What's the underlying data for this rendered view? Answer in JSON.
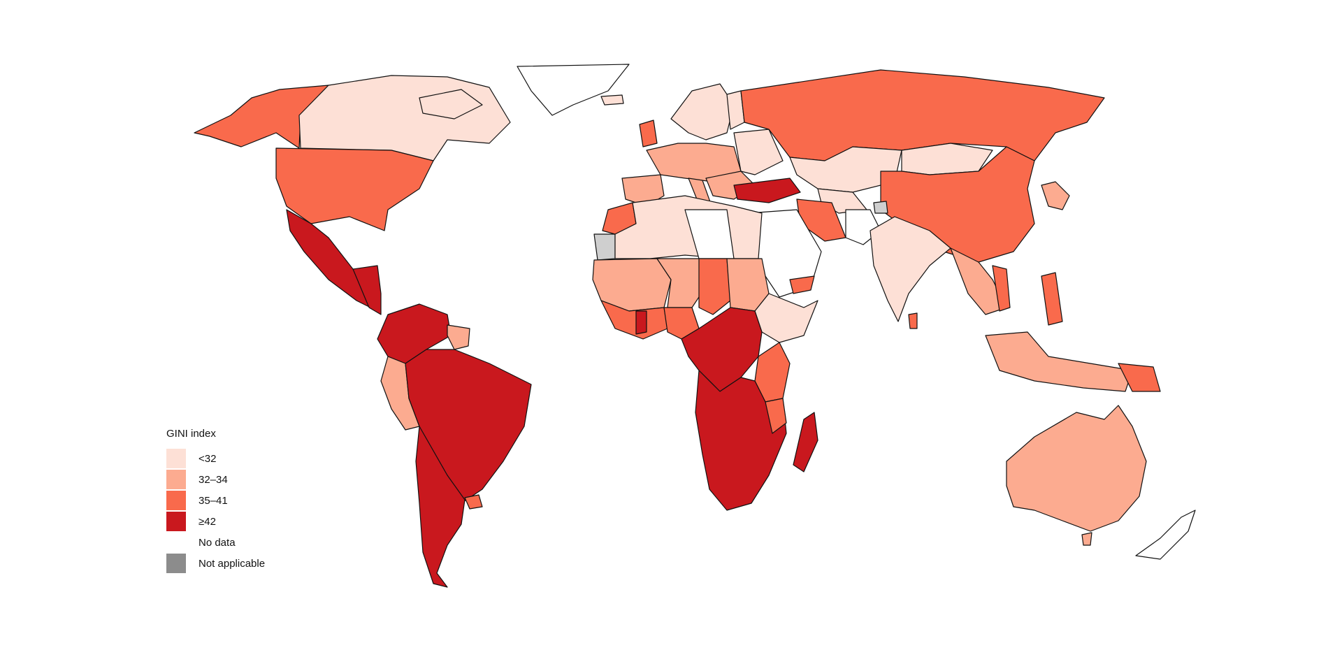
{
  "colors": {
    "lt32": "#fde0d6",
    "32_34": "#fcab90",
    "35_41": "#f96a4c",
    "ge42": "#c9181e",
    "no_data": "#ffffff",
    "not_applicable": "#8c8c8c",
    "outline": "#111111"
  },
  "legend": {
    "title": "GINI index",
    "items": [
      {
        "label": "<32",
        "color": "#fde0d6"
      },
      {
        "label": "32–34",
        "color": "#fcab90"
      },
      {
        "label": "35–41",
        "color": "#f96a4c"
      },
      {
        "label": "≥42",
        "color": "#c9181e"
      },
      {
        "label": "No data",
        "color": "#ffffff"
      },
      {
        "label": "Not applicable",
        "color": "#8c8c8c"
      }
    ]
  }
}
